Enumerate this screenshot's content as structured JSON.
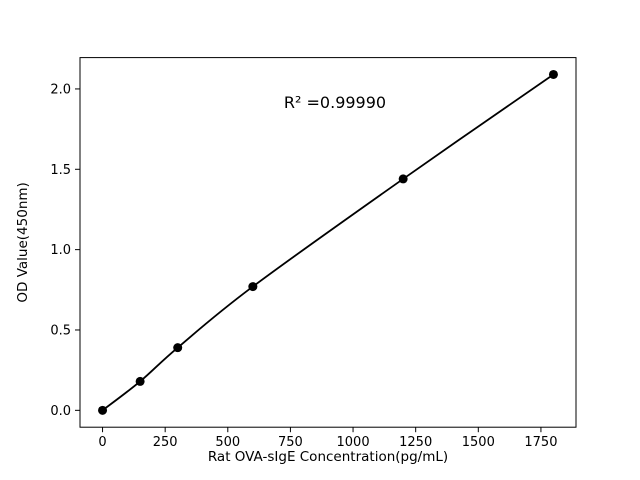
{
  "chart_data": {
    "type": "scatter",
    "title": "",
    "xlabel": "Rat OVA-sIgE Concentration(pg/mL)",
    "ylabel": "OD Value(450nm)",
    "annotation": "R² =0.99990",
    "x": [
      0,
      150,
      300,
      600,
      1200,
      1800
    ],
    "y": [
      0.0,
      0.18,
      0.39,
      0.77,
      1.44,
      2.09
    ],
    "xlim": [
      -90,
      1890
    ],
    "ylim": [
      -0.105,
      2.195
    ],
    "xticks": [
      0,
      250,
      500,
      750,
      1000,
      1250,
      1500,
      1750
    ],
    "xticklabels": [
      "0",
      "250",
      "500",
      "750",
      "1000",
      "1250",
      "1500",
      "1750"
    ],
    "yticks": [
      0.0,
      0.5,
      1.0,
      1.5,
      2.0
    ],
    "yticklabels": [
      "0.0",
      "0.5",
      "1.0",
      "1.5",
      "2.0"
    ],
    "line_color": "#000000",
    "marker_color": "#000000",
    "frame_color": "#000000",
    "background_color": "#ffffff",
    "grid": false,
    "legend": null,
    "line_present": true,
    "marker_present": true
  }
}
